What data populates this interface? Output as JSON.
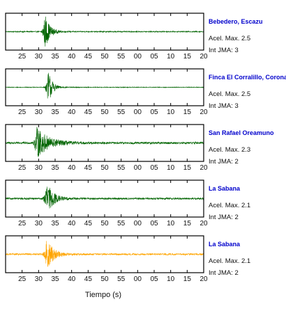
{
  "chart_data": [
    {
      "type": "line",
      "station": "Bebedero, Escazu",
      "accel_label": "Acel. Max. 2.5",
      "jma_label": "Int JMA: 3",
      "line_color": "#006400",
      "arrival": 32,
      "peak_amplitude": 1.0,
      "noise_level": 0.03,
      "decay": 1.4,
      "x_tick_labels": [
        "25",
        "30",
        "35",
        "40",
        "45",
        "50",
        "55",
        "00",
        "05",
        "10",
        "15",
        "20"
      ]
    },
    {
      "type": "line",
      "station": "Finca El Corralillo, Coronado",
      "accel_label": "Acel. Max. 2.5",
      "jma_label": "Int JMA: 3",
      "line_color": "#006400",
      "arrival": 33,
      "peak_amplitude": 1.0,
      "noise_level": 0.02,
      "decay": 1.2,
      "x_tick_labels": [
        "25",
        "30",
        "35",
        "40",
        "45",
        "50",
        "55",
        "00",
        "05",
        "10",
        "15",
        "20"
      ]
    },
    {
      "type": "line",
      "station": "San Rafael Oreamuno",
      "accel_label": "Acel. Max. 2.3",
      "jma_label": "Int JMA: 2",
      "line_color": "#006400",
      "arrival": 29.5,
      "peak_amplitude": 0.9,
      "noise_level": 0.06,
      "decay": 3.5,
      "x_tick_labels": [
        "25",
        "30",
        "35",
        "40",
        "45",
        "50",
        "55",
        "00",
        "05",
        "10",
        "15",
        "20"
      ]
    },
    {
      "type": "line",
      "station": "La Sabana",
      "accel_label": "Acel. Max. 2.1",
      "jma_label": "Int JMA: 2",
      "line_color": "#006400",
      "arrival": 32.5,
      "peak_amplitude": 0.9,
      "noise_level": 0.05,
      "decay": 2.0,
      "x_tick_labels": [
        "25",
        "30",
        "35",
        "40",
        "45",
        "50",
        "55",
        "00",
        "05",
        "10",
        "15",
        "20"
      ]
    },
    {
      "type": "line",
      "station": "La Sabana",
      "accel_label": "Acel. Max. 2.1",
      "jma_label": "Int JMA: 2",
      "line_color": "#FFA500",
      "arrival": 32.5,
      "peak_amplitude": 0.9,
      "noise_level": 0.05,
      "decay": 2.0,
      "x_tick_labels": [
        "25",
        "30",
        "35",
        "40",
        "45",
        "50",
        "55",
        "00",
        "05",
        "10",
        "15",
        "20"
      ]
    }
  ],
  "x_axis": {
    "xlabel": "Tiempo (s)",
    "start": 20,
    "end": 80,
    "tick_step": 5,
    "first_tick": 25
  },
  "station_color": "#0000CC"
}
